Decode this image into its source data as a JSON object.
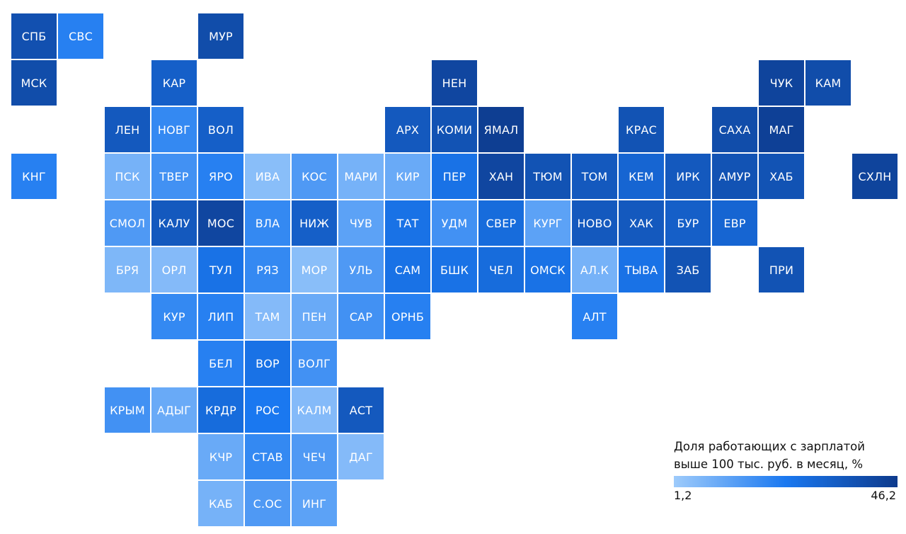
{
  "legend": {
    "title": "Доля работающих с зарплатой\nвыше 100 тыс. руб. в месяц, %",
    "min_label": "1,2",
    "max_label": "46,2",
    "color_low": "#9ecbfb",
    "color_mid": "#1a78f0",
    "color_high": "#0d3a8c"
  },
  "chart_data": {
    "type": "heatmap",
    "value_range": [
      1.2,
      46.2
    ],
    "regions": [
      {
        "label": "СПБ",
        "col": 0,
        "row": 0,
        "level": 0.82
      },
      {
        "label": "СВС",
        "col": 1,
        "row": 0,
        "level": 0.45
      },
      {
        "label": "МУР",
        "col": 4,
        "row": 0,
        "level": 0.85
      },
      {
        "label": "МСК",
        "col": 0,
        "row": 1,
        "level": 0.85
      },
      {
        "label": "КАР",
        "col": 3,
        "row": 1,
        "level": 0.7
      },
      {
        "label": "НЕН",
        "col": 9,
        "row": 1,
        "level": 0.9
      },
      {
        "label": "ЧУК",
        "col": 16,
        "row": 1,
        "level": 0.92
      },
      {
        "label": "КАМ",
        "col": 17,
        "row": 1,
        "level": 0.85
      },
      {
        "label": "ЛЕН",
        "col": 2,
        "row": 2,
        "level": 0.75
      },
      {
        "label": "НОВГ",
        "col": 3,
        "row": 2,
        "level": 0.4
      },
      {
        "label": "ВОЛ",
        "col": 4,
        "row": 2,
        "level": 0.7
      },
      {
        "label": "АРХ",
        "col": 8,
        "row": 2,
        "level": 0.75
      },
      {
        "label": "КОМИ",
        "col": 9,
        "row": 2,
        "level": 0.8
      },
      {
        "label": "ЯМАЛ",
        "col": 10,
        "row": 2,
        "level": 0.97
      },
      {
        "label": "КРАС",
        "col": 13,
        "row": 2,
        "level": 0.8
      },
      {
        "label": "САХА",
        "col": 15,
        "row": 2,
        "level": 0.85
      },
      {
        "label": "МАГ",
        "col": 16,
        "row": 2,
        "level": 0.95
      },
      {
        "label": "КНГ",
        "col": 0,
        "row": 3,
        "level": 0.45
      },
      {
        "label": "ПСК",
        "col": 2,
        "row": 3,
        "level": 0.15
      },
      {
        "label": "ТВЕР",
        "col": 3,
        "row": 3,
        "level": 0.35
      },
      {
        "label": "ЯРО",
        "col": 4,
        "row": 3,
        "level": 0.45
      },
      {
        "label": "ИВА",
        "col": 5,
        "row": 3,
        "level": 0.08
      },
      {
        "label": "КОС",
        "col": 6,
        "row": 3,
        "level": 0.3
      },
      {
        "label": "МАРИ",
        "col": 7,
        "row": 3,
        "level": 0.15
      },
      {
        "label": "КИР",
        "col": 8,
        "row": 3,
        "level": 0.2
      },
      {
        "label": "ПЕР",
        "col": 9,
        "row": 3,
        "level": 0.55
      },
      {
        "label": "ХАН",
        "col": 10,
        "row": 3,
        "level": 0.9
      },
      {
        "label": "ТЮМ",
        "col": 11,
        "row": 3,
        "level": 0.8
      },
      {
        "label": "ТОМ",
        "col": 12,
        "row": 3,
        "level": 0.75
      },
      {
        "label": "КЕМ",
        "col": 13,
        "row": 3,
        "level": 0.65
      },
      {
        "label": "ИРК",
        "col": 14,
        "row": 3,
        "level": 0.75
      },
      {
        "label": "АМУР",
        "col": 15,
        "row": 3,
        "level": 0.8
      },
      {
        "label": "ХАБ",
        "col": 16,
        "row": 3,
        "level": 0.8
      },
      {
        "label": "СХЛН",
        "col": 18,
        "row": 3,
        "level": 0.92
      },
      {
        "label": "СМОЛ",
        "col": 2,
        "row": 4,
        "level": 0.3
      },
      {
        "label": "КАЛУ",
        "col": 3,
        "row": 4,
        "level": 0.75
      },
      {
        "label": "МОС",
        "col": 4,
        "row": 4,
        "level": 0.9
      },
      {
        "label": "ВЛА",
        "col": 5,
        "row": 4,
        "level": 0.4
      },
      {
        "label": "НИЖ",
        "col": 6,
        "row": 4,
        "level": 0.7
      },
      {
        "label": "ЧУВ",
        "col": 7,
        "row": 4,
        "level": 0.25
      },
      {
        "label": "ТАТ",
        "col": 8,
        "row": 4,
        "level": 0.55
      },
      {
        "label": "УДМ",
        "col": 9,
        "row": 4,
        "level": 0.35
      },
      {
        "label": "СВЕР",
        "col": 10,
        "row": 4,
        "level": 0.6
      },
      {
        "label": "КУРГ",
        "col": 11,
        "row": 4,
        "level": 0.25
      },
      {
        "label": "НОВО",
        "col": 12,
        "row": 4,
        "level": 0.75
      },
      {
        "label": "ХАК",
        "col": 13,
        "row": 4,
        "level": 0.75
      },
      {
        "label": "БУР",
        "col": 14,
        "row": 4,
        "level": 0.7
      },
      {
        "label": "ЕВР",
        "col": 15,
        "row": 4,
        "level": 0.65
      },
      {
        "label": "БРЯ",
        "col": 2,
        "row": 5,
        "level": 0.12
      },
      {
        "label": "ОРЛ",
        "col": 3,
        "row": 5,
        "level": 0.1
      },
      {
        "label": "ТУЛ",
        "col": 4,
        "row": 5,
        "level": 0.55
      },
      {
        "label": "РЯЗ",
        "col": 5,
        "row": 5,
        "level": 0.4
      },
      {
        "label": "МОР",
        "col": 6,
        "row": 5,
        "level": 0.08
      },
      {
        "label": "УЛЬ",
        "col": 7,
        "row": 5,
        "level": 0.3
      },
      {
        "label": "САМ",
        "col": 8,
        "row": 5,
        "level": 0.55
      },
      {
        "label": "БШК",
        "col": 9,
        "row": 5,
        "level": 0.55
      },
      {
        "label": "ЧЕЛ",
        "col": 10,
        "row": 5,
        "level": 0.6
      },
      {
        "label": "ОМСК",
        "col": 11,
        "row": 5,
        "level": 0.55
      },
      {
        "label": "АЛ.К",
        "col": 12,
        "row": 5,
        "level": 0.15
      },
      {
        "label": "ТЫВА",
        "col": 13,
        "row": 5,
        "level": 0.55
      },
      {
        "label": "ЗАБ",
        "col": 14,
        "row": 5,
        "level": 0.8
      },
      {
        "label": "ПРИ",
        "col": 16,
        "row": 5,
        "level": 0.8
      },
      {
        "label": "КУР",
        "col": 3,
        "row": 6,
        "level": 0.4
      },
      {
        "label": "ЛИП",
        "col": 4,
        "row": 6,
        "level": 0.45
      },
      {
        "label": "ТАМ",
        "col": 5,
        "row": 6,
        "level": 0.1
      },
      {
        "label": "ПЕН",
        "col": 6,
        "row": 6,
        "level": 0.2
      },
      {
        "label": "САР",
        "col": 7,
        "row": 6,
        "level": 0.35
      },
      {
        "label": "ОРНБ",
        "col": 8,
        "row": 6,
        "level": 0.45
      },
      {
        "label": "АЛТ",
        "col": 12,
        "row": 6,
        "level": 0.45
      },
      {
        "label": "БЕЛ",
        "col": 4,
        "row": 7,
        "level": 0.45
      },
      {
        "label": "ВОР",
        "col": 5,
        "row": 7,
        "level": 0.55
      },
      {
        "label": "ВОЛГ",
        "col": 6,
        "row": 7,
        "level": 0.35
      },
      {
        "label": "КРЫМ",
        "col": 2,
        "row": 8,
        "level": 0.35
      },
      {
        "label": "АДЫГ",
        "col": 3,
        "row": 8,
        "level": 0.2
      },
      {
        "label": "КРДР",
        "col": 4,
        "row": 8,
        "level": 0.6
      },
      {
        "label": "РОС",
        "col": 5,
        "row": 8,
        "level": 0.5
      },
      {
        "label": "КАЛМ",
        "col": 6,
        "row": 8,
        "level": 0.1
      },
      {
        "label": "АСТ",
        "col": 7,
        "row": 8,
        "level": 0.75
      },
      {
        "label": "КЧР",
        "col": 4,
        "row": 9,
        "level": 0.2
      },
      {
        "label": "СТАВ",
        "col": 5,
        "row": 9,
        "level": 0.4
      },
      {
        "label": "ЧЕЧ",
        "col": 6,
        "row": 9,
        "level": 0.3
      },
      {
        "label": "ДАГ",
        "col": 7,
        "row": 9,
        "level": 0.1
      },
      {
        "label": "КАБ",
        "col": 4,
        "row": 10,
        "level": 0.15
      },
      {
        "label": "С.ОС",
        "col": 5,
        "row": 10,
        "level": 0.3
      },
      {
        "label": "ИНГ",
        "col": 6,
        "row": 10,
        "level": 0.25
      }
    ]
  }
}
